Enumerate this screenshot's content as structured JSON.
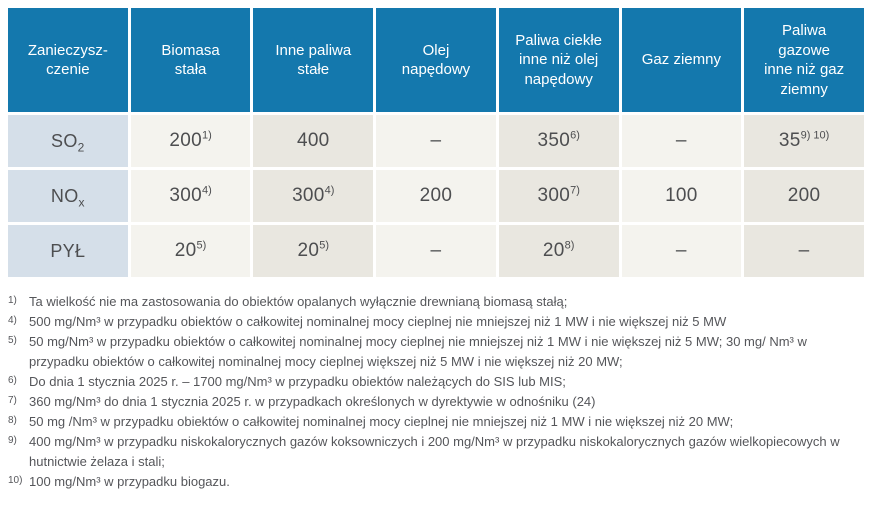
{
  "table": {
    "headers": [
      "Zanieczysz-\nczenie",
      "Biomasa\nstała",
      "Inne paliwa\nstałe",
      "Olej\nnapędowy",
      "Paliwa ciekłe\ninne niż olej\nnapędowy",
      "Gaz ziemny",
      "Paliwa\ngazowe\ninne niż gaz\nziemny"
    ],
    "rows": [
      {
        "label": {
          "base": "SO",
          "sub": "2"
        },
        "cells": [
          {
            "value": "200",
            "sup": "1)"
          },
          {
            "value": "400",
            "sup": ""
          },
          {
            "value": "–",
            "sup": ""
          },
          {
            "value": "350",
            "sup": "6)"
          },
          {
            "value": "–",
            "sup": ""
          },
          {
            "value": "35",
            "sup": "9) 10)"
          }
        ]
      },
      {
        "label": {
          "base": "NO",
          "sub": "x"
        },
        "cells": [
          {
            "value": "300",
            "sup": "4)"
          },
          {
            "value": "300",
            "sup": "4)"
          },
          {
            "value": "200",
            "sup": ""
          },
          {
            "value": "300",
            "sup": "7)"
          },
          {
            "value": "100",
            "sup": ""
          },
          {
            "value": "200",
            "sup": ""
          }
        ]
      },
      {
        "label": {
          "base": "PYŁ",
          "sub": ""
        },
        "cells": [
          {
            "value": "20",
            "sup": "5)"
          },
          {
            "value": "20",
            "sup": "5)"
          },
          {
            "value": "–",
            "sup": ""
          },
          {
            "value": "20",
            "sup": "8)"
          },
          {
            "value": "–",
            "sup": ""
          },
          {
            "value": "–",
            "sup": ""
          }
        ]
      }
    ]
  },
  "footnotes": [
    {
      "marker": "1)",
      "text": "Ta wielkość nie ma zastosowania do obiektów opalanych wyłącznie drewnianą biomasą stałą;"
    },
    {
      "marker": "4)",
      "text": "500 mg/Nm³ w przypadku obiektów o całkowitej nominalnej mocy cieplnej nie mniejszej niż 1 MW i nie większej niż 5 MW"
    },
    {
      "marker": "5)",
      "text": "50 mg/Nm³ w przypadku obiektów o całkowitej nominalnej mocy cieplnej nie mniejszej niż 1 MW i nie większej niż 5 MW; 30 mg/ Nm³ w przypadku obiektów o całkowitej nominalnej mocy cieplnej większej niż 5 MW i nie większej niż 20 MW;"
    },
    {
      "marker": "6)",
      "text": "Do dnia 1 stycznia 2025 r. – 1700 mg/Nm³ w przypadku obiektów należących do SIS lub MIS;"
    },
    {
      "marker": "7)",
      "text": "360 mg/Nm³ do dnia 1 stycznia 2025 r. w przypadkach określonych w dyrektywie w odnośniku (24)"
    },
    {
      "marker": "8)",
      "text": "50 mg /Nm³ w przypadku obiektów o całkowitej nominalnej mocy cieplnej nie mniejszej niż 1 MW i nie większej niż 20 MW;"
    },
    {
      "marker": "9)",
      "text": "400 mg/Nm³ w przypadku niskokalorycznych gazów koksowniczych i 200 mg/Nm³ w przypadku niskokalorycznych gazów wielkopiecowych w hutnictwie żelaza i stali;"
    },
    {
      "marker": "10)",
      "text": "100 mg/Nm³ w przypadku biogazu."
    }
  ],
  "colors": {
    "header_bg": "#1478ad",
    "label_col_bg": "#d5dfe9",
    "cell_light_bg": "#f4f3ee",
    "cell_dark_bg": "#e9e7e0",
    "header_text": "#ffffff",
    "cell_text": "#4d4e50",
    "footnote_text": "#55565a"
  }
}
